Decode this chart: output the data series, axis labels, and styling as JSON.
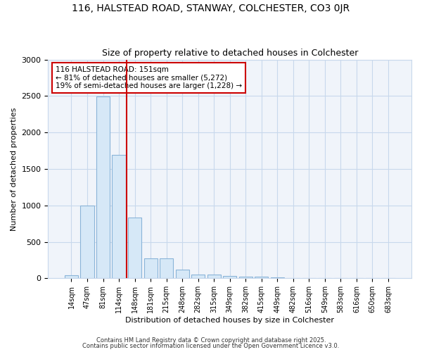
{
  "title1": "116, HALSTEAD ROAD, STANWAY, COLCHESTER, CO3 0JR",
  "title2": "Size of property relative to detached houses in Colchester",
  "xlabel": "Distribution of detached houses by size in Colchester",
  "ylabel": "Number of detached properties",
  "bar_labels": [
    "14sqm",
    "47sqm",
    "81sqm",
    "114sqm",
    "148sqm",
    "181sqm",
    "215sqm",
    "248sqm",
    "282sqm",
    "315sqm",
    "349sqm",
    "382sqm",
    "415sqm",
    "449sqm",
    "482sqm",
    "516sqm",
    "549sqm",
    "583sqm",
    "616sqm",
    "650sqm",
    "683sqm"
  ],
  "bar_values": [
    45,
    1000,
    2490,
    1690,
    830,
    270,
    270,
    120,
    50,
    50,
    28,
    25,
    20,
    10,
    0,
    0,
    0,
    0,
    0,
    0,
    0
  ],
  "bar_color": "#d6e8f7",
  "bar_edge_color": "#8ab4d8",
  "vline_color": "#cc0000",
  "vline_pos": 3.5,
  "annotation_text": "116 HALSTEAD ROAD: 151sqm\n← 81% of detached houses are smaller (5,272)\n19% of semi-detached houses are larger (1,228) →",
  "annotation_box_color": "#cc0000",
  "ylim": [
    0,
    3000
  ],
  "yticks": [
    0,
    500,
    1000,
    1500,
    2000,
    2500,
    3000
  ],
  "grid_color": "#c8d8ec",
  "bg_color": "#ffffff",
  "plot_bg_color": "#f0f4fa",
  "footer1": "Contains HM Land Registry data © Crown copyright and database right 2025.",
  "footer2": "Contains public sector information licensed under the Open Government Licence v3.0."
}
